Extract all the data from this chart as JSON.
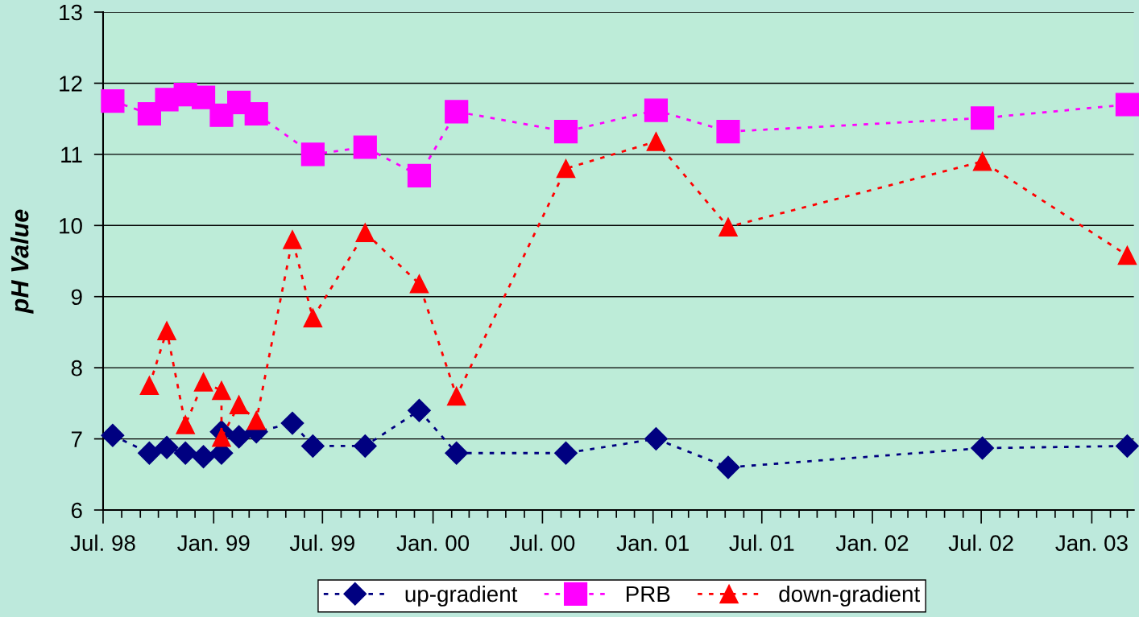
{
  "chart_data": {
    "type": "line",
    "ylabel": "pH Value",
    "ylim": [
      6,
      13
    ],
    "yticks": [
      6,
      7,
      8,
      9,
      10,
      11,
      12,
      13
    ],
    "xlim": [
      "1998-07-01",
      "2003-03-12"
    ],
    "xticks": [
      {
        "value": "1998-07-01",
        "label": "Jul. 98"
      },
      {
        "value": "1999-01-01",
        "label": "Jan. 99"
      },
      {
        "value": "1999-07-01",
        "label": "Jul. 99"
      },
      {
        "value": "2000-01-01",
        "label": "Jan. 00"
      },
      {
        "value": "2000-07-01",
        "label": "Jul. 00"
      },
      {
        "value": "2001-01-01",
        "label": "Jan. 01"
      },
      {
        "value": "2001-07-01",
        "label": "Jul. 01"
      },
      {
        "value": "2002-01-01",
        "label": "Jan. 02"
      },
      {
        "value": "2002-07-01",
        "label": "Jul. 02"
      },
      {
        "value": "2003-01-01",
        "label": "Jan. 03"
      }
    ],
    "grid": "y",
    "legend": "bottom",
    "line_style": "dashed",
    "series": [
      {
        "name": "up-gradient",
        "color": "#000080",
        "marker": "diamond",
        "x": [
          "1998-07-17",
          "1998-09-16",
          "1998-10-15",
          "1998-11-15",
          "1998-12-15",
          "1999-01-14",
          "1999-01-14",
          "1999-02-12",
          "1999-03-13",
          "1999-05-12",
          "1999-06-15",
          "1999-09-10",
          "1999-12-09",
          "2000-02-09",
          "2000-08-09",
          "2001-01-06",
          "2001-05-06",
          "2002-07-03",
          "2003-03-01"
        ],
        "values": [
          7.05,
          6.8,
          6.88,
          6.8,
          6.75,
          6.8,
          7.1,
          7.03,
          7.1,
          7.22,
          6.9,
          6.9,
          7.4,
          6.8,
          6.8,
          7.0,
          6.6,
          6.87,
          6.9
        ]
      },
      {
        "name": "PRB",
        "color": "#ff00ff",
        "marker": "square",
        "x": [
          "1998-07-17",
          "1998-09-16",
          "1998-10-15",
          "1998-11-15",
          "1998-12-15",
          "1999-01-14",
          "1999-02-12",
          "1999-03-13",
          "1999-06-15",
          "1999-09-10",
          "1999-12-09",
          "2000-02-09",
          "2000-08-09",
          "2001-01-06",
          "2001-05-06",
          "2002-07-03",
          "2003-03-01"
        ],
        "values": [
          11.75,
          11.57,
          11.77,
          11.84,
          11.8,
          11.55,
          11.73,
          11.57,
          11.0,
          11.1,
          10.7,
          11.6,
          11.32,
          11.62,
          11.32,
          11.51,
          11.7
        ]
      },
      {
        "name": "down-gradient",
        "color": "#ff0000",
        "marker": "triangle",
        "x": [
          "1998-09-16",
          "1998-10-15",
          "1998-11-15",
          "1998-12-15",
          "1999-01-14",
          "1999-01-14",
          "1999-02-12",
          "1999-03-13",
          "1999-05-12",
          "1999-06-15",
          "1999-09-10",
          "1999-12-09",
          "2000-02-09",
          "2000-08-09",
          "2001-01-06",
          "2001-05-06",
          "2002-07-03",
          "2003-03-01"
        ],
        "values": [
          7.75,
          8.52,
          7.2,
          7.8,
          7.68,
          7.02,
          7.48,
          7.26,
          9.8,
          8.7,
          9.9,
          9.18,
          7.6,
          10.8,
          11.18,
          9.98,
          10.9,
          9.58
        ]
      }
    ]
  }
}
